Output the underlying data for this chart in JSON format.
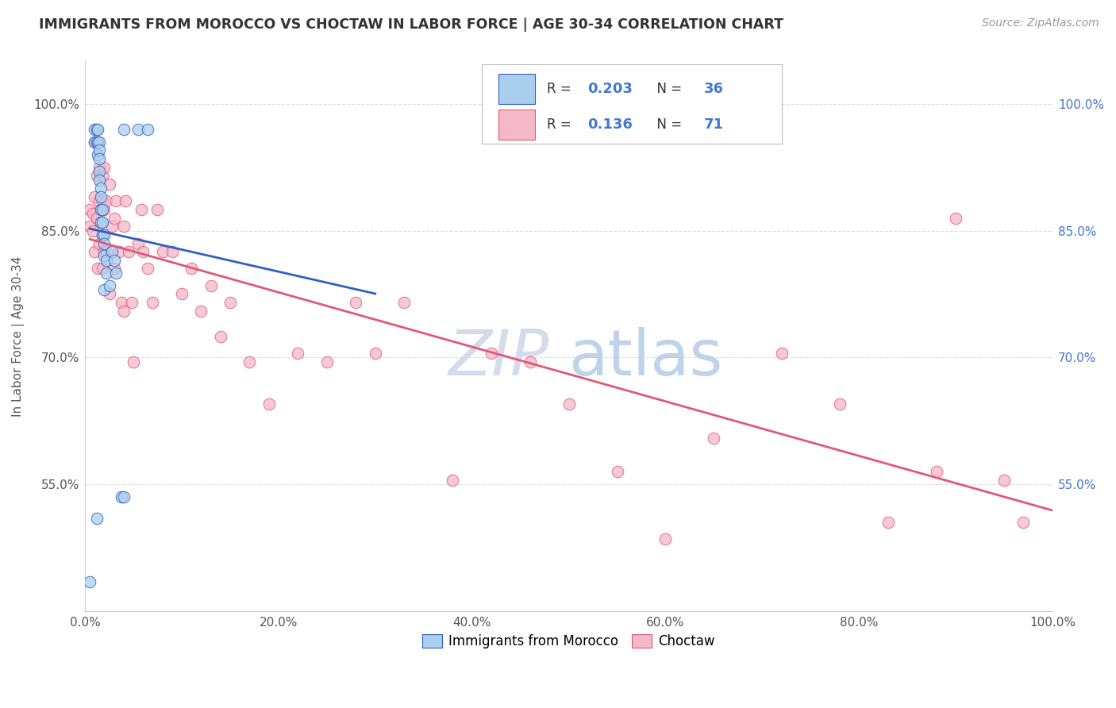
{
  "title": "IMMIGRANTS FROM MOROCCO VS CHOCTAW IN LABOR FORCE | AGE 30-34 CORRELATION CHART",
  "source": "Source: ZipAtlas.com",
  "ylabel": "In Labor Force | Age 30-34",
  "xlim": [
    0.0,
    1.0
  ],
  "ylim": [
    0.4,
    1.05
  ],
  "yticks": [
    0.55,
    0.7,
    0.85,
    1.0
  ],
  "ytick_labels": [
    "55.0%",
    "70.0%",
    "85.0%",
    "100.0%"
  ],
  "xticks": [
    0.0,
    0.2,
    0.4,
    0.6,
    0.8,
    1.0
  ],
  "xtick_labels": [
    "0.0%",
    "20.0%",
    "40.0%",
    "60.0%",
    "80.0%",
    "100.0%"
  ],
  "morocco_R": 0.203,
  "morocco_N": 36,
  "choctaw_R": 0.136,
  "choctaw_N": 71,
  "morocco_color": "#aacfee",
  "choctaw_color": "#f5b8c8",
  "trend_morocco_color": "#3060c0",
  "trend_choctaw_color": "#e05878",
  "morocco_x": [
    0.005,
    0.01,
    0.01,
    0.012,
    0.012,
    0.013,
    0.013,
    0.013,
    0.015,
    0.015,
    0.015,
    0.015,
    0.015,
    0.016,
    0.016,
    0.016,
    0.016,
    0.018,
    0.018,
    0.018,
    0.02,
    0.02,
    0.02,
    0.02,
    0.022,
    0.022,
    0.025,
    0.028,
    0.03,
    0.032,
    0.038,
    0.04,
    0.04,
    0.055,
    0.065,
    0.012
  ],
  "morocco_y": [
    0.435,
    0.97,
    0.955,
    0.97,
    0.955,
    0.97,
    0.955,
    0.94,
    0.955,
    0.945,
    0.935,
    0.92,
    0.91,
    0.9,
    0.89,
    0.875,
    0.86,
    0.875,
    0.86,
    0.845,
    0.845,
    0.835,
    0.82,
    0.78,
    0.815,
    0.8,
    0.785,
    0.825,
    0.815,
    0.8,
    0.535,
    0.535,
    0.97,
    0.97,
    0.97,
    0.51
  ],
  "choctaw_x": [
    0.005,
    0.005,
    0.008,
    0.008,
    0.01,
    0.01,
    0.01,
    0.012,
    0.012,
    0.013,
    0.015,
    0.015,
    0.015,
    0.018,
    0.018,
    0.018,
    0.018,
    0.02,
    0.02,
    0.02,
    0.022,
    0.022,
    0.025,
    0.025,
    0.028,
    0.03,
    0.03,
    0.032,
    0.035,
    0.038,
    0.04,
    0.04,
    0.042,
    0.045,
    0.048,
    0.05,
    0.055,
    0.058,
    0.06,
    0.065,
    0.07,
    0.075,
    0.08,
    0.09,
    0.1,
    0.11,
    0.12,
    0.13,
    0.14,
    0.15,
    0.17,
    0.19,
    0.22,
    0.25,
    0.28,
    0.3,
    0.33,
    0.38,
    0.42,
    0.46,
    0.5,
    0.55,
    0.6,
    0.65,
    0.72,
    0.78,
    0.83,
    0.88,
    0.9,
    0.95,
    0.97
  ],
  "choctaw_y": [
    0.875,
    0.855,
    0.87,
    0.85,
    0.955,
    0.89,
    0.825,
    0.915,
    0.865,
    0.805,
    0.925,
    0.885,
    0.835,
    0.915,
    0.885,
    0.845,
    0.805,
    0.925,
    0.875,
    0.825,
    0.885,
    0.825,
    0.775,
    0.905,
    0.855,
    0.805,
    0.865,
    0.885,
    0.825,
    0.765,
    0.855,
    0.755,
    0.885,
    0.825,
    0.765,
    0.695,
    0.835,
    0.875,
    0.825,
    0.805,
    0.765,
    0.875,
    0.825,
    0.825,
    0.775,
    0.805,
    0.755,
    0.785,
    0.725,
    0.765,
    0.695,
    0.645,
    0.705,
    0.695,
    0.765,
    0.705,
    0.765,
    0.555,
    0.705,
    0.695,
    0.645,
    0.565,
    0.485,
    0.605,
    0.705,
    0.645,
    0.505,
    0.565,
    0.865,
    0.555,
    0.505
  ],
  "watermark_zip": "ZIP",
  "watermark_atlas": "atlas",
  "background_color": "#ffffff",
  "grid_color": "#dddddd"
}
